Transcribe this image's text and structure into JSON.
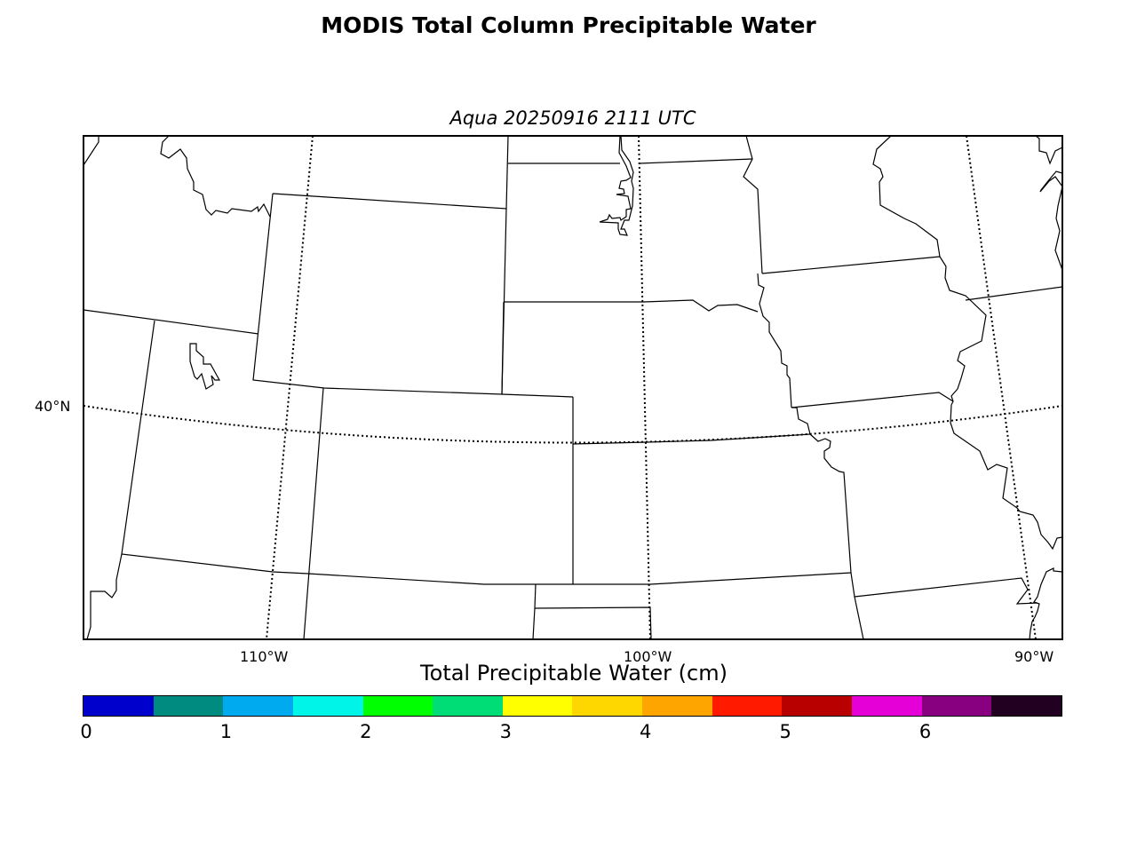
{
  "figure": {
    "title": "MODIS Total Column Precipitable Water",
    "subtitle": "Aqua 20250916 2111 UTC"
  },
  "map": {
    "lat_labels": [
      "40°N"
    ],
    "lon_labels": [
      "110°W",
      "100°W",
      "90°W"
    ],
    "line_color": "#000000",
    "background": "#ffffff"
  },
  "colorbar": {
    "label": "Total Precipitable Water (cm)",
    "ticks": [
      "0",
      "1",
      "2",
      "3",
      "4",
      "5",
      "6"
    ],
    "colors": [
      "#0000cc",
      "#008b80",
      "#00aaee",
      "#00f5e8",
      "#00ff00",
      "#00dd77",
      "#ffff00",
      "#ffd700",
      "#ffa500",
      "#ff1a00",
      "#b80000",
      "#e600d8",
      "#880080",
      "#220022"
    ]
  }
}
